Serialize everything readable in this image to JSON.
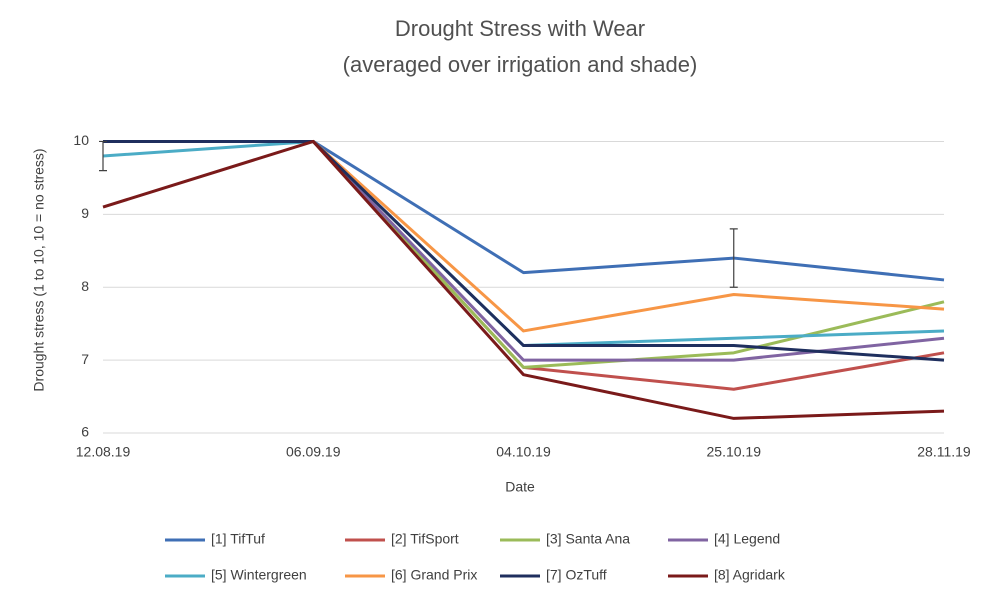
{
  "chart_data": {
    "type": "line",
    "title": [
      "Drought Stress with Wear",
      "(averaged over irrigation and shade)"
    ],
    "x_label": "Date",
    "y_label": "Drought stress (1 to 10, 10 = no stress)",
    "categories": [
      "12.08.19",
      "06.09.19",
      "04.10.19",
      "25.10.19",
      "28.11.19"
    ],
    "ylim": [
      6,
      10.5
    ],
    "yticks": [
      6,
      7,
      8,
      9,
      10
    ],
    "grid": true,
    "legend": "bottom",
    "series": [
      {
        "name": "[1] TifTuf",
        "color": "#3f6fb5",
        "values": [
          10,
          10,
          8.2,
          8.4,
          8.1
        ],
        "errors": [
          null,
          null,
          null,
          0.4,
          null
        ]
      },
      {
        "name": "[2] TifSport",
        "color": "#c0504d",
        "values": [
          10,
          10,
          6.9,
          6.6,
          7.1
        ]
      },
      {
        "name": "[3] Santa Ana",
        "color": "#9bbb59",
        "values": [
          10,
          10,
          6.9,
          7.1,
          7.8
        ]
      },
      {
        "name": "[4] Legend",
        "color": "#8064a2",
        "values": [
          10,
          10,
          7.0,
          7.0,
          7.3
        ]
      },
      {
        "name": "[5] Wintergreen",
        "color": "#4bacc6",
        "values": [
          9.8,
          10,
          7.2,
          7.3,
          7.4
        ],
        "errors": [
          0.2,
          null,
          null,
          null,
          null
        ]
      },
      {
        "name": "[6] Grand Prix",
        "color": "#f79646",
        "values": [
          10,
          10,
          7.4,
          7.9,
          7.7
        ]
      },
      {
        "name": "[7] OzTuff",
        "color": "#1f2f5e",
        "values": [
          10,
          10,
          7.2,
          7.2,
          7.0
        ]
      },
      {
        "name": "[8] Agridark",
        "color": "#7a1a1a",
        "values": [
          9.1,
          10,
          6.8,
          6.2,
          6.3
        ]
      }
    ]
  }
}
